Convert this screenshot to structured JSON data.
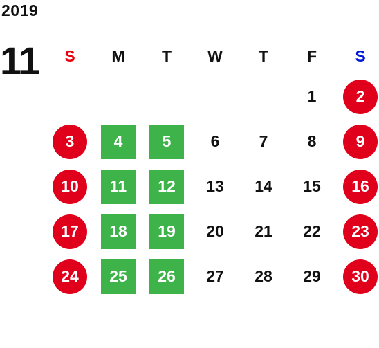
{
  "calendar": {
    "year": "2019",
    "month": "11",
    "colors": {
      "sunday_header": "#e8000e",
      "saturday_header": "#0016d9",
      "weekday_header": "#111111",
      "holiday_circle": "#e0001b",
      "closed_square": "#3db34a"
    },
    "weekdays": [
      {
        "label": "S",
        "kind": "sunday"
      },
      {
        "label": "M",
        "kind": "weekday"
      },
      {
        "label": "T",
        "kind": "weekday"
      },
      {
        "label": "W",
        "kind": "weekday"
      },
      {
        "label": "T",
        "kind": "weekday"
      },
      {
        "label": "F",
        "kind": "weekday"
      },
      {
        "label": "S",
        "kind": "saturday"
      }
    ],
    "weeks": [
      [
        {
          "day": "",
          "style": "empty"
        },
        {
          "day": "",
          "style": "empty"
        },
        {
          "day": "",
          "style": "empty"
        },
        {
          "day": "",
          "style": "empty"
        },
        {
          "day": "",
          "style": "empty"
        },
        {
          "day": "1",
          "style": "normal"
        },
        {
          "day": "2",
          "style": "holiday"
        }
      ],
      [
        {
          "day": "3",
          "style": "holiday"
        },
        {
          "day": "4",
          "style": "closed"
        },
        {
          "day": "5",
          "style": "closed"
        },
        {
          "day": "6",
          "style": "normal"
        },
        {
          "day": "7",
          "style": "normal"
        },
        {
          "day": "8",
          "style": "normal"
        },
        {
          "day": "9",
          "style": "holiday"
        }
      ],
      [
        {
          "day": "10",
          "style": "holiday"
        },
        {
          "day": "11",
          "style": "closed"
        },
        {
          "day": "12",
          "style": "closed"
        },
        {
          "day": "13",
          "style": "normal"
        },
        {
          "day": "14",
          "style": "normal"
        },
        {
          "day": "15",
          "style": "normal"
        },
        {
          "day": "16",
          "style": "holiday"
        }
      ],
      [
        {
          "day": "17",
          "style": "holiday"
        },
        {
          "day": "18",
          "style": "closed"
        },
        {
          "day": "19",
          "style": "closed"
        },
        {
          "day": "20",
          "style": "normal"
        },
        {
          "day": "21",
          "style": "normal"
        },
        {
          "day": "22",
          "style": "normal"
        },
        {
          "day": "23",
          "style": "holiday"
        }
      ],
      [
        {
          "day": "24",
          "style": "holiday"
        },
        {
          "day": "25",
          "style": "closed"
        },
        {
          "day": "26",
          "style": "closed"
        },
        {
          "day": "27",
          "style": "normal"
        },
        {
          "day": "28",
          "style": "normal"
        },
        {
          "day": "29",
          "style": "normal"
        },
        {
          "day": "30",
          "style": "holiday"
        }
      ]
    ]
  }
}
